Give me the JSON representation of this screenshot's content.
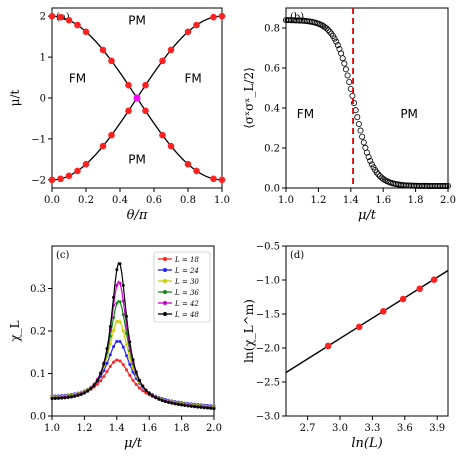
{
  "chart_data": [
    {
      "type": "line",
      "panel_label": "(a)",
      "xlabel": "θ/π",
      "ylabel": "μ/t",
      "xlim": [
        0.0,
        1.0
      ],
      "ylim": [
        -2.2,
        2.2
      ],
      "xticks": [
        0.0,
        0.2,
        0.4,
        0.6,
        0.8,
        1.0
      ],
      "xtick_labels": [
        "0.0",
        "0.2",
        "0.4",
        "0.6",
        "0.8",
        "1.0"
      ],
      "yticks": [
        -2,
        -1,
        0,
        1,
        2
      ],
      "ytick_labels": [
        "−2",
        "−1",
        "0",
        "1",
        "2"
      ],
      "annotations": [
        {
          "text": "PM",
          "x": 0.5,
          "y": 1.8
        },
        {
          "text": "FM",
          "x": 0.15,
          "y": 0.38
        },
        {
          "text": "FM",
          "x": 0.83,
          "y": 0.38
        },
        {
          "text": "PM",
          "x": 0.5,
          "y": -1.6
        }
      ],
      "series": [
        {
          "values_note": "upper-left branch",
          "x": [
            0.0,
            0.05,
            0.1,
            0.15,
            0.2,
            0.25,
            0.3,
            0.35,
            0.4,
            0.45,
            0.5,
            0.55,
            0.6,
            0.65,
            0.7,
            0.75,
            0.8,
            0.85,
            0.9,
            0.95,
            1.0
          ],
          "y": [
            2.0,
            1.975,
            1.902,
            1.782,
            1.618,
            1.414,
            1.176,
            0.908,
            0.618,
            0.313,
            0.0,
            -0.313,
            -0.618,
            -0.908,
            -1.176,
            -1.414,
            -1.618,
            -1.782,
            -1.902,
            -1.975,
            -2.0
          ]
        },
        {
          "values_note": "lower-left branch",
          "x": [
            0.0,
            0.05,
            0.1,
            0.15,
            0.2,
            0.25,
            0.3,
            0.35,
            0.4,
            0.45,
            0.5,
            0.55,
            0.6,
            0.65,
            0.7,
            0.75,
            0.8,
            0.85,
            0.9,
            0.95,
            1.0
          ],
          "y": [
            -2.0,
            -1.975,
            -1.902,
            -1.782,
            -1.618,
            -1.414,
            -1.176,
            -0.908,
            -0.618,
            -0.313,
            0.0,
            0.313,
            0.618,
            0.908,
            1.176,
            1.414,
            1.618,
            1.782,
            1.902,
            1.975,
            2.0
          ]
        }
      ],
      "markers_x": [
        0.0,
        0.05,
        0.1,
        0.15,
        0.2,
        0.3,
        0.35,
        0.45,
        0.55,
        0.65,
        0.7,
        0.8,
        0.85,
        0.95,
        1.0
      ],
      "crossing_point": {
        "x": 0.5,
        "y": 0.0,
        "color": "#ff00ff"
      },
      "colors": {
        "line": "#000000",
        "marker": "#ff2222"
      }
    },
    {
      "type": "scatter",
      "panel_label": "(b)",
      "xlabel": "μ/t",
      "ylabel": "⟨σˣσˣ_L/2⟩",
      "xlim": [
        1.0,
        2.0
      ],
      "ylim": [
        0.0,
        0.9
      ],
      "xticks": [
        1.0,
        1.2,
        1.4,
        1.6,
        1.8,
        2.0
      ],
      "xtick_labels": [
        "1.0",
        "1.2",
        "1.4",
        "1.6",
        "1.8",
        "2.0"
      ],
      "yticks": [
        0.0,
        0.2,
        0.4,
        0.6,
        0.8
      ],
      "ytick_labels": [
        "0.0",
        "0.2",
        "0.4",
        "0.6",
        "0.8"
      ],
      "critical_line": {
        "x": 1.414,
        "color": "#dd0000",
        "style": "dashed"
      },
      "annotations": [
        {
          "text": "FM",
          "x": 1.12,
          "y": 0.35
        },
        {
          "text": "PM",
          "x": 1.76,
          "y": 0.35
        }
      ],
      "curve": {
        "model": "sigmoid",
        "amplitude": 0.83,
        "center": 1.42,
        "width": 0.058,
        "x_start": 1.0,
        "x_end": 2.0,
        "step": 0.01
      }
    },
    {
      "type": "line",
      "panel_label": "(c)",
      "xlabel": "μ/t",
      "ylabel": "χ_L",
      "xlim": [
        1.0,
        2.0
      ],
      "ylim": [
        0.0,
        0.4
      ],
      "xticks": [
        1.0,
        1.2,
        1.4,
        1.6,
        1.8,
        2.0
      ],
      "xtick_labels": [
        "1.0",
        "1.2",
        "1.4",
        "1.6",
        "1.8",
        "2.0"
      ],
      "yticks": [
        0.0,
        0.1,
        0.2,
        0.3
      ],
      "ytick_labels": [
        "0.0",
        "0.1",
        "0.2",
        "0.3"
      ],
      "legend_placement": "top-right",
      "series": [
        {
          "name": "L = 18",
          "peak": 0.14,
          "center": 1.405,
          "width": 0.13,
          "base": 0.04,
          "color": "#ff2222"
        },
        {
          "name": "L = 24",
          "peak": 0.185,
          "center": 1.41,
          "width": 0.115,
          "base": 0.04,
          "color": "#2222ff"
        },
        {
          "name": "L = 30",
          "peak": 0.233,
          "center": 1.41,
          "width": 0.1,
          "base": 0.038,
          "color": "#cccc00"
        },
        {
          "name": "L = 36",
          "peak": 0.28,
          "center": 1.412,
          "width": 0.09,
          "base": 0.036,
          "color": "#118811"
        },
        {
          "name": "L = 42",
          "peak": 0.325,
          "center": 1.412,
          "width": 0.082,
          "base": 0.035,
          "color": "#cc00cc"
        },
        {
          "name": "L = 48",
          "peak": 0.37,
          "center": 1.414,
          "width": 0.075,
          "base": 0.034,
          "color": "#000000"
        }
      ],
      "x_start": 1.0,
      "x_end": 2.0,
      "step": 0.01
    },
    {
      "type": "scatter",
      "panel_label": "(d)",
      "xlabel": "ln(L)",
      "ylabel": "ln(χ_L^m)",
      "xlim": [
        2.5,
        4.0
      ],
      "ylim": [
        -3.0,
        -0.5
      ],
      "xticks": [
        2.7,
        3.0,
        3.3,
        3.6,
        3.9
      ],
      "xtick_labels": [
        "2.7",
        "3.0",
        "3.3",
        "3.6",
        "3.9"
      ],
      "yticks": [
        -3.0,
        -2.5,
        -2.0,
        -1.5,
        -1.0,
        -0.5
      ],
      "ytick_labels": [
        "−3.0",
        "−2.5",
        "−2.0",
        "−1.5",
        "−1.0",
        "−0.5"
      ],
      "points_x": [
        2.89,
        3.178,
        3.401,
        3.584,
        3.738,
        3.871
      ],
      "points_y": [
        -1.97,
        -1.69,
        -1.46,
        -1.28,
        -1.13,
        -0.995
      ],
      "fit_line": {
        "x": [
          2.5,
          4.0
        ],
        "y": [
          -2.36,
          -0.86
        ]
      },
      "colors": {
        "marker": "#ff2222",
        "line": "#000000"
      }
    }
  ]
}
